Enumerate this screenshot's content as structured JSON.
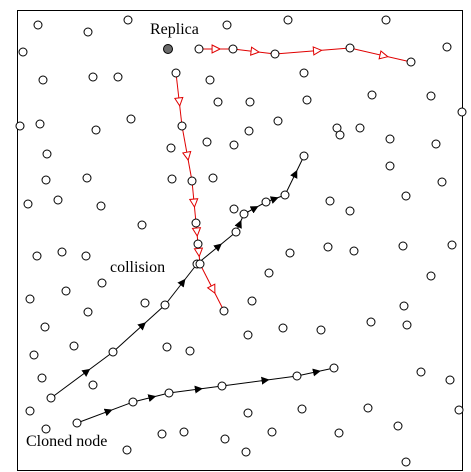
{
  "labels": {
    "replica": "Replica",
    "collision": "collision",
    "cloned_node": "Cloned node"
  },
  "colors": {
    "node_stroke": "#000000",
    "node_fill": "#ffffff",
    "replica_fill": "#6b6b6b",
    "replica_path": "#e00000",
    "cloned_path": "#000000",
    "border": "#000000"
  }
}
